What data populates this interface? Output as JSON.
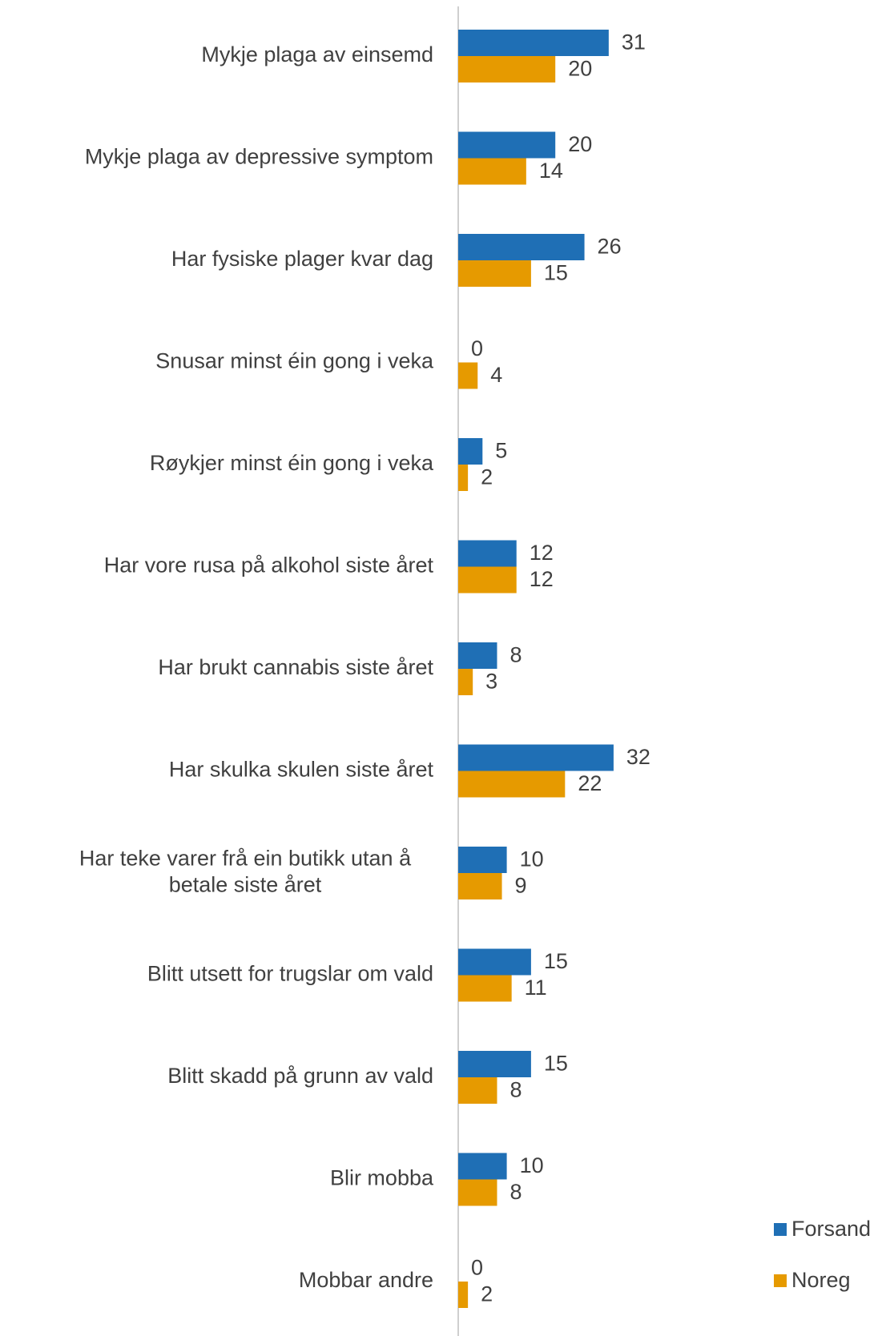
{
  "chart_data": {
    "type": "bar",
    "orientation": "horizontal",
    "categories": [
      "Mykje plaga av einsemd",
      "Mykje plaga av depressive symptom",
      "Har fysiske plager kvar dag",
      "Snusar minst éin gong i veka",
      "Røykjer minst éin gong i veka",
      "Har vore rusa på alkohol siste året",
      "Har brukt cannabis siste året",
      "Har skulka skulen siste året",
      "Har teke varer frå ein butikk utan å betale siste året",
      "Blitt utsett for trugslar om vald",
      "Blitt skadd på grunn av vald",
      "Blir mobba",
      "Mobbar andre"
    ],
    "series": [
      {
        "name": "Forsand",
        "color": "#1f6fb5",
        "values": [
          31,
          20,
          26,
          0,
          5,
          12,
          8,
          32,
          10,
          15,
          15,
          10,
          0
        ]
      },
      {
        "name": "Noreg",
        "color": "#e69a00",
        "values": [
          20,
          14,
          15,
          4,
          2,
          12,
          3,
          22,
          9,
          11,
          8,
          8,
          2
        ]
      }
    ],
    "xlim": [
      0,
      35
    ],
    "grid": false,
    "legend_position": "bottom-right",
    "axis_color": "#bfbfbf",
    "label_color": "#404040"
  }
}
